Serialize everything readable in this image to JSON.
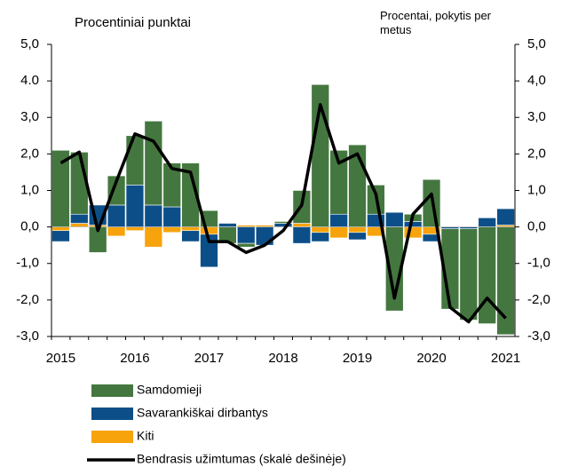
{
  "chart_data": {
    "type": "bar",
    "left_axis_label": "Procentiniai punktai",
    "right_axis_label": "Procentai, pokytis per metus",
    "categories": [
      "2015",
      null,
      null,
      null,
      "2016",
      null,
      null,
      null,
      "2017",
      null,
      null,
      null,
      "2018",
      null,
      null,
      null,
      "2019",
      null,
      null,
      null,
      "2020",
      null,
      null,
      null,
      "2021"
    ],
    "stacked": true,
    "series": [
      {
        "name": "Samdomieji",
        "type": "bar",
        "color": "#44773f",
        "values": [
          2.1,
          1.7,
          -0.7,
          0.8,
          1.35,
          2.3,
          1.2,
          1.75,
          0.45,
          -0.45,
          -0.1,
          0.0,
          0.05,
          0.9,
          3.9,
          1.75,
          2.25,
          0.8,
          -2.3,
          0.2,
          1.3,
          -2.2,
          -2.5,
          -2.65,
          -2.95
        ]
      },
      {
        "name": "Savarankiškai dirbantys",
        "type": "bar",
        "color": "#0c4f88",
        "values": [
          -0.3,
          0.25,
          0.55,
          0.6,
          1.15,
          0.6,
          0.55,
          -0.3,
          -0.9,
          0.1,
          -0.45,
          -0.5,
          0.1,
          -0.45,
          -0.25,
          0.35,
          -0.2,
          0.35,
          0.4,
          0.15,
          -0.2,
          -0.05,
          -0.05,
          0.25,
          0.45
        ]
      },
      {
        "name": "Kiti",
        "type": "bar",
        "color": "#f7a30c",
        "values": [
          -0.1,
          0.1,
          0.05,
          -0.25,
          -0.1,
          -0.55,
          -0.15,
          -0.1,
          -0.2,
          0.0,
          0.05,
          0.05,
          0.0,
          0.1,
          -0.15,
          -0.3,
          -0.15,
          -0.25,
          0.0,
          -0.3,
          -0.2,
          0.0,
          0.0,
          0.0,
          0.05
        ]
      },
      {
        "name": "Bendrasis užimtumas (skalė dešinėje)",
        "type": "line",
        "axis": "y2",
        "color": "#000000",
        "values": [
          1.75,
          2.05,
          -0.1,
          1.25,
          2.55,
          2.35,
          1.6,
          1.5,
          -0.4,
          -0.4,
          -0.7,
          -0.5,
          -0.1,
          0.6,
          3.35,
          1.75,
          2.0,
          0.9,
          -1.95,
          0.35,
          0.9,
          -2.2,
          -2.6,
          -1.95,
          -2.5
        ]
      }
    ],
    "ylim": [
      -3,
      5
    ],
    "yticks": [
      {
        "value": -3,
        "label": "-3,0"
      },
      {
        "value": -2,
        "label": "-2,0"
      },
      {
        "value": -1,
        "label": "-1,0"
      },
      {
        "value": 0,
        "label": "0,0"
      },
      {
        "value": 1,
        "label": "1,0"
      },
      {
        "value": 2,
        "label": "2,0"
      },
      {
        "value": 3,
        "label": "3,0"
      },
      {
        "value": 4,
        "label": "4.0"
      },
      {
        "value": 5,
        "label": "5,0"
      }
    ],
    "y2lim": [
      -3,
      5
    ],
    "y2ticks": [
      {
        "value": -3,
        "label": "-3,0"
      },
      {
        "value": -2,
        "label": "-2,0"
      },
      {
        "value": -1,
        "label": "-1,0"
      },
      {
        "value": 0,
        "label": "0,0"
      },
      {
        "value": 1,
        "label": "1,0"
      },
      {
        "value": 2,
        "label": "2,0"
      },
      {
        "value": 3,
        "label": "3,0"
      },
      {
        "value": 4,
        "label": "4,0"
      },
      {
        "value": 5,
        "label": "5,0"
      }
    ],
    "legend": "bottom"
  }
}
